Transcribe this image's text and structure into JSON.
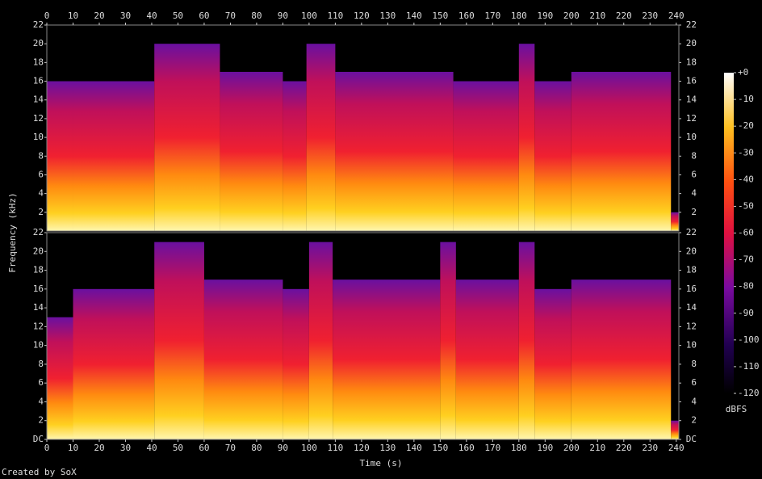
{
  "chart_data": {
    "type": "spectrogram",
    "xlabel": "Time (s)",
    "ylabel": "Frequency (kHz)",
    "credit": "Created by SoX",
    "xlim": [
      0,
      241
    ],
    "xticks": [
      0,
      10,
      20,
      30,
      40,
      50,
      60,
      70,
      80,
      90,
      100,
      110,
      120,
      130,
      140,
      150,
      160,
      170,
      180,
      190,
      200,
      210,
      220,
      230,
      240
    ],
    "panels": [
      {
        "ylim": [
          0,
          22
        ],
        "yticks": [
          2,
          4,
          6,
          8,
          10,
          12,
          14,
          16,
          18,
          20,
          22
        ],
        "segments": [
          {
            "start": 0,
            "end": 10,
            "top": 16
          },
          {
            "start": 10,
            "end": 41,
            "top": 16
          },
          {
            "start": 41,
            "end": 66,
            "top": 20
          },
          {
            "start": 66,
            "end": 90,
            "top": 17
          },
          {
            "start": 90,
            "end": 99,
            "top": 16
          },
          {
            "start": 99,
            "end": 110,
            "top": 20
          },
          {
            "start": 110,
            "end": 155,
            "top": 17
          },
          {
            "start": 155,
            "end": 180,
            "top": 16
          },
          {
            "start": 180,
            "end": 186,
            "top": 20
          },
          {
            "start": 186,
            "end": 200,
            "top": 16
          },
          {
            "start": 200,
            "end": 238,
            "top": 17
          },
          {
            "start": 238,
            "end": 241,
            "top": 2
          }
        ]
      },
      {
        "ylim": [
          0,
          22
        ],
        "yticks": [
          {
            "value": 0,
            "label": "DC"
          },
          2,
          4,
          6,
          8,
          10,
          12,
          14,
          16,
          18,
          20,
          22
        ],
        "segments": [
          {
            "start": 0,
            "end": 10,
            "top": 13
          },
          {
            "start": 10,
            "end": 41,
            "top": 16
          },
          {
            "start": 41,
            "end": 60,
            "top": 21
          },
          {
            "start": 60,
            "end": 90,
            "top": 17
          },
          {
            "start": 90,
            "end": 100,
            "top": 16
          },
          {
            "start": 100,
            "end": 109,
            "top": 21
          },
          {
            "start": 109,
            "end": 150,
            "top": 17
          },
          {
            "start": 150,
            "end": 156,
            "top": 21
          },
          {
            "start": 156,
            "end": 180,
            "top": 17
          },
          {
            "start": 180,
            "end": 186,
            "top": 21
          },
          {
            "start": 186,
            "end": 200,
            "top": 16
          },
          {
            "start": 200,
            "end": 238,
            "top": 17
          },
          {
            "start": 238,
            "end": 241,
            "top": 2
          }
        ]
      }
    ],
    "colorbar": {
      "label": "dBFS",
      "lim": [
        -120,
        0
      ],
      "ticks": [
        {
          "value": 0,
          "label": "+0"
        },
        -10,
        -20,
        -30,
        -40,
        -50,
        -60,
        -70,
        -80,
        -90,
        -100,
        -110,
        -120
      ]
    }
  }
}
